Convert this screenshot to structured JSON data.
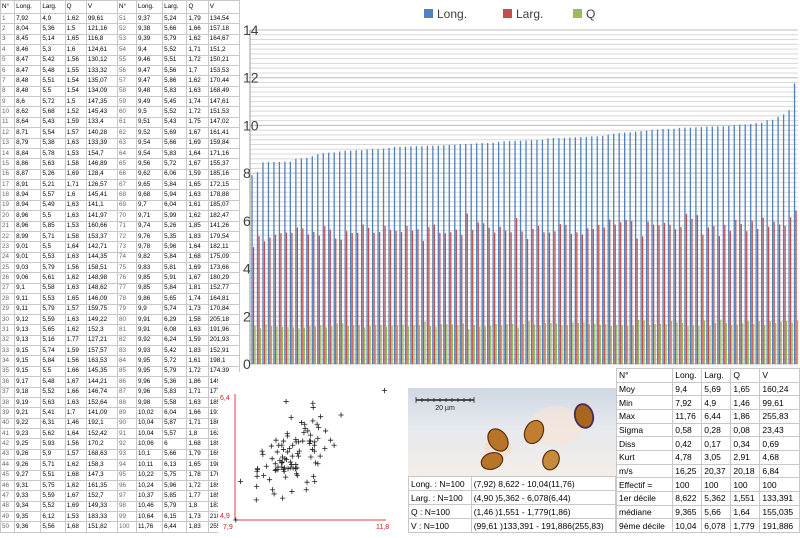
{
  "table": {
    "headers": [
      "N°",
      "Long.",
      "Larg.",
      "Q",
      "V"
    ],
    "rows": [
      [
        "1",
        "7,92",
        "4,9",
        "1,62",
        "99,61",
        "51",
        "9,37",
        "5,24",
        "1,79",
        "134,54"
      ],
      [
        "2",
        "8,04",
        "5,36",
        "1,5",
        "121,16",
        "52",
        "9,38",
        "5,66",
        "1,66",
        "157,18"
      ],
      [
        "3",
        "8,45",
        "5,14",
        "1,65",
        "116,8",
        "53",
        "9,39",
        "5,79",
        "1,62",
        "164,67"
      ],
      [
        "4",
        "8,46",
        "5,3",
        "1,6",
        "124,61",
        "54",
        "9,4",
        "5,52",
        "1,71",
        "151,2"
      ],
      [
        "5",
        "8,47",
        "5,42",
        "1,56",
        "130,12",
        "55",
        "9,46",
        "5,51",
        "1,72",
        "150,21"
      ],
      [
        "6",
        "8,47",
        "5,48",
        "1,55",
        "133,32",
        "56",
        "9,47",
        "5,56",
        "1,7",
        "153,53"
      ],
      [
        "7",
        "8,48",
        "5,51",
        "1,54",
        "135,07",
        "57",
        "9,47",
        "5,86",
        "1,62",
        "170,44"
      ],
      [
        "8",
        "8,48",
        "5,5",
        "1,54",
        "134,09",
        "58",
        "9,48",
        "5,83",
        "1,63",
        "168,49"
      ],
      [
        "9",
        "8,6",
        "5,72",
        "1,5",
        "147,35",
        "59",
        "9,49",
        "5,45",
        "1,74",
        "147,61"
      ],
      [
        "10",
        "8,62",
        "5,68",
        "1,52",
        "145,43",
        "60",
        "9,5",
        "5,52",
        "1,72",
        "151,53"
      ],
      [
        "11",
        "8,64",
        "5,43",
        "1,59",
        "133,4",
        "61",
        "9,51",
        "5,43",
        "1,75",
        "147,02"
      ],
      [
        "12",
        "8,71",
        "5,54",
        "1,57",
        "140,28",
        "62",
        "9,52",
        "5,69",
        "1,67",
        "161,41"
      ],
      [
        "13",
        "8,79",
        "5,38",
        "1,63",
        "133,39",
        "63",
        "9,54",
        "5,66",
        "1,69",
        "159,84"
      ],
      [
        "14",
        "8,84",
        "5,78",
        "1,53",
        "154,7",
        "64",
        "9,54",
        "5,83",
        "1,64",
        "171,16"
      ],
      [
        "15",
        "8,86",
        "5,63",
        "1,58",
        "146,89",
        "65",
        "9,56",
        "5,72",
        "1,67",
        "155,37"
      ],
      [
        "16",
        "8,87",
        "5,26",
        "1,69",
        "128,4",
        "66",
        "9,62",
        "6,06",
        "1,59",
        "185,16"
      ],
      [
        "17",
        "8,91",
        "5,21",
        "1,71",
        "126,57",
        "67",
        "9,65",
        "5,84",
        "1,65",
        "172,15"
      ],
      [
        "18",
        "8,94",
        "5,57",
        "1,6",
        "145,41",
        "68",
        "9,68",
        "5,94",
        "1,63",
        "178,88"
      ],
      [
        "19",
        "8,94",
        "5,49",
        "1,63",
        "141,1",
        "69",
        "9,7",
        "6,04",
        "1,61",
        "185,07"
      ],
      [
        "20",
        "8,96",
        "5,5",
        "1,63",
        "141,97",
        "70",
        "9,71",
        "5,99",
        "1,62",
        "182,47"
      ],
      [
        "21",
        "8,96",
        "5,85",
        "1,53",
        "160,66",
        "71",
        "9,74",
        "5,26",
        "1,85",
        "141,26"
      ],
      [
        "22",
        "8,99",
        "5,71",
        "1,58",
        "153,37",
        "72",
        "9,76",
        "5,35",
        "1,83",
        "179,54"
      ],
      [
        "23",
        "9,01",
        "5,5",
        "1,64",
        "142,71",
        "73",
        "9,78",
        "5,96",
        "1,64",
        "182,11"
      ],
      [
        "24",
        "9,01",
        "5,53",
        "1,63",
        "144,35",
        "74",
        "9,82",
        "5,84",
        "1,68",
        "175,09"
      ],
      [
        "25",
        "9,03",
        "5,79",
        "1,56",
        "158,51",
        "75",
        "9,83",
        "5,81",
        "1,69",
        "173,66"
      ],
      [
        "26",
        "9,06",
        "5,61",
        "1,62",
        "148,98",
        "76",
        "9,85",
        "5,91",
        "1,67",
        "180,29"
      ],
      [
        "27",
        "9,1",
        "5,58",
        "1,63",
        "148,62",
        "77",
        "9,85",
        "5,84",
        "1,81",
        "152,77"
      ],
      [
        "28",
        "9,11",
        "5,53",
        "1,65",
        "146,09",
        "78",
        "9,86",
        "5,65",
        "1,74",
        "164,81"
      ],
      [
        "29",
        "9,11",
        "5,79",
        "1,57",
        "159,75",
        "79",
        "9,9",
        "5,74",
        "1,73",
        "170,84"
      ],
      [
        "30",
        "9,12",
        "5,59",
        "1,63",
        "149,22",
        "80",
        "9,91",
        "6,29",
        "1,58",
        "205,18"
      ],
      [
        "31",
        "9,13",
        "5,65",
        "1,62",
        "152,3",
        "81",
        "9,91",
        "6,08",
        "1,63",
        "191,96"
      ],
      [
        "32",
        "9,13",
        "5,16",
        "1,77",
        "127,21",
        "82",
        "9,92",
        "6,24",
        "1,59",
        "201,93"
      ],
      [
        "33",
        "9,15",
        "5,74",
        "1,59",
        "157,57",
        "83",
        "9,93",
        "5,42",
        "1,83",
        "152,91"
      ],
      [
        "34",
        "9,15",
        "5,84",
        "1,56",
        "163,53",
        "84",
        "9,95",
        "5,72",
        "1,61",
        "198,1"
      ],
      [
        "35",
        "9,15",
        "5,5",
        "1,66",
        "145,35",
        "85",
        "9,95",
        "5,79",
        "1,72",
        "174,39"
      ],
      [
        "36",
        "9,17",
        "5,48",
        "1,67",
        "144,21",
        "86",
        "9,96",
        "5,36",
        "1,86",
        "149,98"
      ],
      [
        "37",
        "9,18",
        "5,52",
        "1,66",
        "146,74",
        "87",
        "9,96",
        "5,83",
        "1,71",
        "177,41"
      ],
      [
        "38",
        "9,19",
        "5,63",
        "1,63",
        "152,64",
        "88",
        "9,98",
        "5,58",
        "1,63",
        "185,6"
      ],
      [
        "39",
        "9,21",
        "5,41",
        "1,7",
        "141,09",
        "89",
        "10,02",
        "6,04",
        "1,66",
        "191,27"
      ],
      [
        "40",
        "9,22",
        "6,31",
        "1,46",
        "192,1",
        "90",
        "10,04",
        "5,87",
        "1,71",
        "180,89"
      ],
      [
        "41",
        "9,23",
        "5,62",
        "1,64",
        "152,42",
        "91",
        "10,04",
        "5,57",
        "1,8",
        "162,98"
      ],
      [
        "42",
        "9,25",
        "5,93",
        "1,56",
        "170,2",
        "92",
        "10,06",
        "6",
        "1,68",
        "189,6"
      ],
      [
        "43",
        "9,26",
        "5,9",
        "1,57",
        "168,63",
        "93",
        "10,1",
        "5,66",
        "1,79",
        "169,11"
      ],
      [
        "44",
        "9,26",
        "5,71",
        "1,62",
        "158,3",
        "94",
        "10,11",
        "6,13",
        "1,65",
        "198,96"
      ],
      [
        "45",
        "9,27",
        "5,51",
        "1,68",
        "147,3",
        "95",
        "10,22",
        "5,75",
        "1,78",
        "176,93"
      ],
      [
        "46",
        "9,31",
        "5,75",
        "1,62",
        "161,35",
        "96",
        "10,24",
        "5,96",
        "1,72",
        "189,24"
      ],
      [
        "47",
        "9,33",
        "5,59",
        "1,67",
        "152,7",
        "97",
        "10,37",
        "5,85",
        "1,77",
        "185,62"
      ],
      [
        "48",
        "9,34",
        "5,52",
        "1,69",
        "149,33",
        "98",
        "10,46",
        "5,79",
        "1,8",
        "183,04"
      ],
      [
        "49",
        "9,35",
        "6,12",
        "1,53",
        "183,33",
        "99",
        "10,64",
        "6,15",
        "1,73",
        "210,56"
      ],
      [
        "50",
        "9,36",
        "5,56",
        "1,68",
        "151,82",
        "100",
        "11,76",
        "6,44",
        "1,83",
        "255,83"
      ]
    ]
  },
  "chart_data": [
    {
      "type": "bar",
      "legend": [
        "Long.",
        "Larg.",
        "Q"
      ],
      "legend_placement": "top",
      "series_colors": [
        "#4f81bd",
        "#c0504d",
        "#9bbb59"
      ],
      "ylim": [
        0,
        14
      ],
      "yticks": [
        "0",
        "2",
        "4",
        "6",
        "8",
        "10",
        "12",
        "14"
      ],
      "grid": true,
      "sorted_by": "Long."
    },
    {
      "type": "scatter",
      "x_series": "Long.",
      "y_series": "Larg.",
      "xlim": [
        7.9,
        11.8
      ],
      "ylim": [
        4.9,
        6.4
      ],
      "x_tick_labels": [
        "7,9",
        "11,8"
      ],
      "y_tick_labels": [
        "4,9",
        "6,4"
      ],
      "marker": "+"
    },
    {
      "type": "table",
      "headers": [
        "N°",
        "Long.",
        "Larg.",
        "Q",
        "V"
      ],
      "rows": [
        [
          "Moy",
          "9,4",
          "5,69",
          "1,65",
          "160,24"
        ],
        [
          "Min",
          "7,92",
          "4,9",
          "1,46",
          "99,61"
        ],
        [
          "Max",
          "11,76",
          "6,44",
          "1,86",
          "255,83"
        ],
        [
          "Sigma",
          "0,58",
          "0,28",
          "0,08",
          "23,43"
        ],
        [
          "Diss",
          "0,42",
          "0,17",
          "0,34",
          "0,69"
        ],
        [
          "Kurt",
          "4,78",
          "3,05",
          "2,91",
          "4,68"
        ],
        [
          "m/s",
          "16,25",
          "20,37",
          "20,18",
          "6,84"
        ],
        [
          "Effectif =",
          "100",
          "100",
          "100",
          "100"
        ],
        [
          "1er décile",
          "8,622",
          "5,362",
          "1,551",
          "133,391"
        ],
        [
          "médiane",
          "9,365",
          "5,66",
          "1,64",
          "155,035"
        ],
        [
          "9ème décile",
          "10,04",
          "6,078",
          "1,779",
          "191,886"
        ]
      ]
    }
  ],
  "ranges": [
    [
      "Long. : N=100",
      "(7,92) 8,622 - 10,04(11,76)"
    ],
    [
      "Larg. : N=100",
      "(4,90 )5,362 - 6,078(6,44)"
    ],
    [
      "Q : N=100",
      "(1,46 )1,551 - 1,779(1,86)"
    ],
    [
      "V : N=100",
      "(99,61 )133,391 - 191,886(255,83)"
    ]
  ],
  "micrograph": {
    "scale_label": "20 µm"
  }
}
